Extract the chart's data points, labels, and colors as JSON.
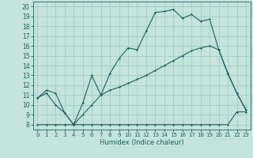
{
  "xlabel": "Humidex (Indice chaleur)",
  "xlim": [
    -0.5,
    23.5
  ],
  "ylim": [
    7.5,
    20.5
  ],
  "xticks": [
    0,
    1,
    2,
    3,
    4,
    5,
    6,
    7,
    8,
    9,
    10,
    11,
    12,
    13,
    14,
    15,
    16,
    17,
    18,
    19,
    20,
    21,
    22,
    23
  ],
  "yticks": [
    8,
    9,
    10,
    11,
    12,
    13,
    14,
    15,
    16,
    17,
    18,
    19,
    20
  ],
  "bg_color": "#c4e4dc",
  "grid_color": "#9ecec6",
  "line_color": "#1a6060",
  "line1_x": [
    0,
    1,
    2,
    3,
    4,
    5,
    6,
    7,
    8,
    9,
    10,
    11,
    12,
    13,
    14,
    15,
    16,
    17,
    18,
    19,
    20,
    21,
    22,
    23
  ],
  "line1_y": [
    10.7,
    11.5,
    11.2,
    9.2,
    8.0,
    10.2,
    13.0,
    11.0,
    13.2,
    14.7,
    15.8,
    15.6,
    17.5,
    19.4,
    19.5,
    19.7,
    18.8,
    19.2,
    18.5,
    18.7,
    15.6,
    13.2,
    11.2,
    9.5
  ],
  "line2_x": [
    0,
    1,
    2,
    3,
    4,
    5,
    6,
    7,
    8,
    9,
    10,
    11,
    12,
    13,
    14,
    15,
    16,
    17,
    18,
    19,
    20,
    21,
    22,
    23
  ],
  "line2_y": [
    8.0,
    8.0,
    8.0,
    8.0,
    8.0,
    8.0,
    8.0,
    8.0,
    8.0,
    8.0,
    8.0,
    8.0,
    8.0,
    8.0,
    8.0,
    8.0,
    8.0,
    8.0,
    8.0,
    8.0,
    8.0,
    8.0,
    9.3,
    9.3
  ],
  "line3_x": [
    0,
    1,
    2,
    3,
    4,
    5,
    6,
    7,
    8,
    9,
    10,
    11,
    12,
    13,
    14,
    15,
    16,
    17,
    18,
    19,
    20,
    21,
    22,
    23
  ],
  "line3_y": [
    10.7,
    11.2,
    10.0,
    9.2,
    8.0,
    9.0,
    10.0,
    11.0,
    11.5,
    11.8,
    12.2,
    12.6,
    13.0,
    13.5,
    14.0,
    14.5,
    15.0,
    15.5,
    15.8,
    16.0,
    15.6,
    13.2,
    11.2,
    9.5
  ],
  "figwidth": 3.2,
  "figheight": 2.0,
  "dpi": 100
}
